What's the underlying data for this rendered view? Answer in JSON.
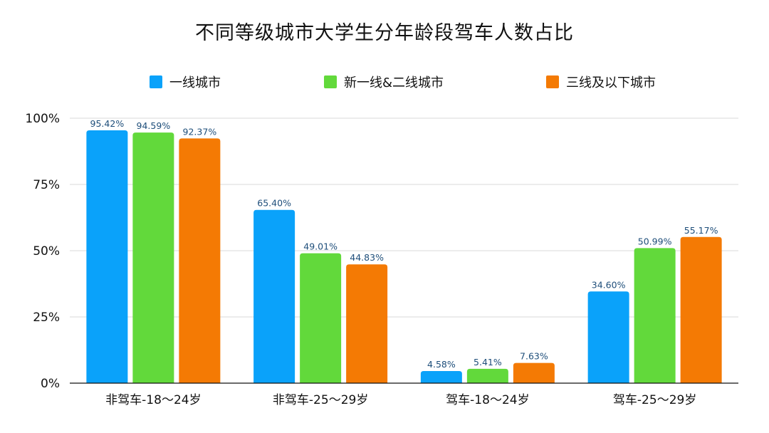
{
  "chart_data": {
    "type": "bar",
    "title": "不同等级城市大学生分年龄段驾车人数占比",
    "xlabel": "",
    "ylabel": "",
    "ylim": [
      0,
      100
    ],
    "yticks": [
      "0%",
      "25%",
      "50%",
      "75%",
      "100%"
    ],
    "ytick_values": [
      0,
      25,
      50,
      75,
      100
    ],
    "grid": true,
    "legend_position": "top",
    "categories": [
      "非驾车-18～24岁",
      "非驾车-25～29岁",
      "驾车-18～24岁",
      "驾车-25～29岁"
    ],
    "series": [
      {
        "name": "一线城市",
        "color": "#0aa2fa",
        "values": [
          95.42,
          65.4,
          4.58,
          34.6
        ],
        "labels": [
          "95.42%",
          "65.40%",
          "4.58%",
          "34.60%"
        ]
      },
      {
        "name": "新一线&二线城市",
        "color": "#62d93b",
        "values": [
          94.59,
          49.01,
          5.41,
          50.99
        ],
        "labels": [
          "94.59%",
          "49.01%",
          "5.41%",
          "50.99%"
        ]
      },
      {
        "name": "三线及以下城市",
        "color": "#f47a04",
        "values": [
          92.37,
          44.83,
          7.63,
          55.17
        ],
        "labels": [
          "92.37%",
          "44.83%",
          "7.63%",
          "55.17%"
        ]
      }
    ],
    "label_color": "#1e4e7a",
    "axis_color": "#111111",
    "grid_color": "#d9d9d9"
  }
}
